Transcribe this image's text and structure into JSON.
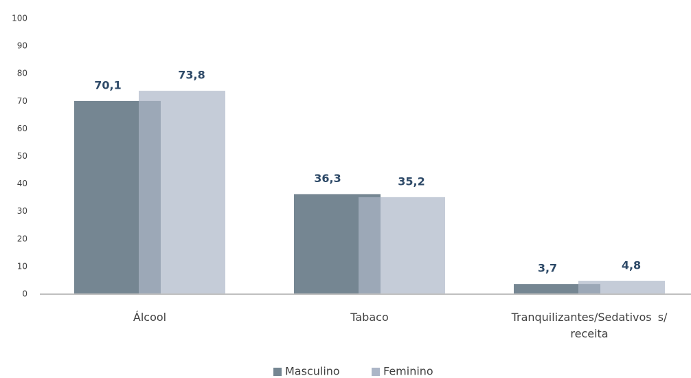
{
  "chart_data": {
    "type": "bar",
    "categories": [
      "Álcool",
      "Tabaco",
      "Tranquilizantes/Sedativos  s/ receita"
    ],
    "series": [
      {
        "name": "Masculino",
        "color": "#758692",
        "values": [
          70.1,
          36.3,
          3.7
        ],
        "value_labels": [
          "70,1",
          "36,3",
          "3,7"
        ]
      },
      {
        "name": "Feminino",
        "color": "#acb6c7",
        "values": [
          73.8,
          35.2,
          4.8
        ],
        "value_labels": [
          "73,8",
          "35,2",
          "4,8"
        ]
      }
    ],
    "ylim": [
      0,
      100
    ],
    "yticks": [
      0,
      10,
      20,
      30,
      40,
      50,
      60,
      70,
      80,
      90,
      100
    ],
    "grid": false,
    "legend": "bottom"
  }
}
